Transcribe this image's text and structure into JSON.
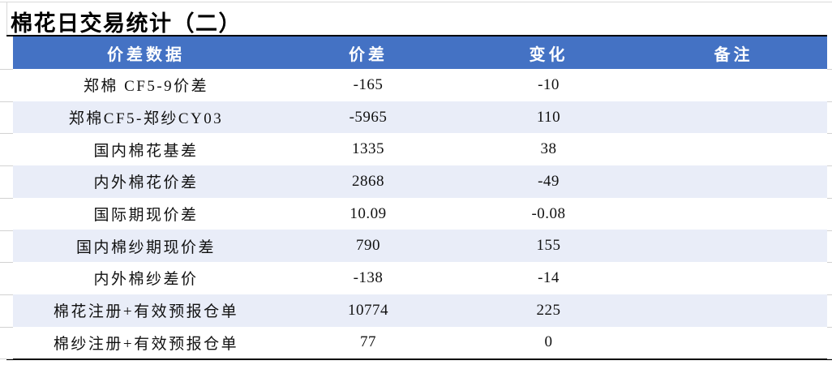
{
  "title": "棉花日交易统计（二）",
  "table": {
    "columns": [
      "价差数据",
      "价差",
      "变化",
      "备注"
    ],
    "rows": [
      {
        "name": "郑棉 CF5-9价差",
        "spread": "-165",
        "change": "-10",
        "note": ""
      },
      {
        "name": "郑棉CF5-郑纱CY03",
        "spread": "-5965",
        "change": "110",
        "note": ""
      },
      {
        "name": "国内棉花基差",
        "spread": "1335",
        "change": "38",
        "note": ""
      },
      {
        "name": "内外棉花价差",
        "spread": "2868",
        "change": "-49",
        "note": ""
      },
      {
        "name": "国际期现价差",
        "spread": "10.09",
        "change": "-0.08",
        "note": ""
      },
      {
        "name": "国内棉纱期现价差",
        "spread": "790",
        "change": "155",
        "note": ""
      },
      {
        "name": "内外棉纱差价",
        "spread": "-138",
        "change": "-14",
        "note": ""
      },
      {
        "name": "棉花注册+有效预报仓单",
        "spread": "10774",
        "change": "225",
        "note": ""
      },
      {
        "name": "棉纱注册+有效预报仓单",
        "spread": "77",
        "change": "0",
        "note": ""
      }
    ]
  },
  "colors": {
    "header_bg": "#4472C4",
    "header_text": "#FFFFFF",
    "stripe_bg": "#E9EDF8",
    "table_border": "#000000"
  }
}
